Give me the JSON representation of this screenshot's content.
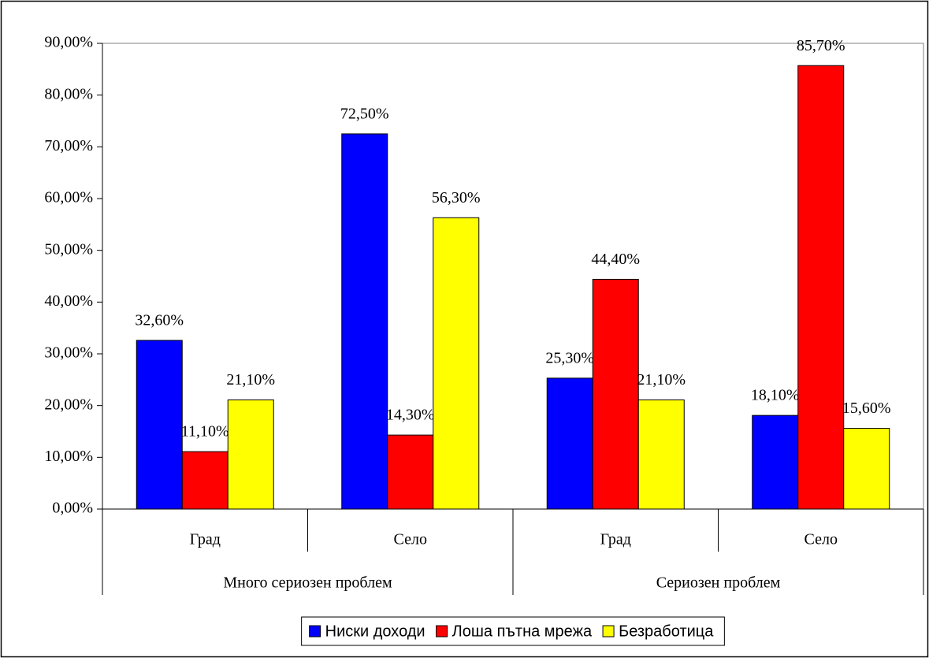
{
  "chart_data": {
    "type": "bar",
    "categories": [
      "Град",
      "Село",
      "Град",
      "Село"
    ],
    "group_labels": [
      "Много сериозен проблем",
      "Сериозен проблем"
    ],
    "series": [
      {
        "name": "Ниски доходи",
        "color": "#0000ff",
        "values": [
          32.6,
          72.5,
          25.3,
          18.1
        ],
        "value_labels": [
          "32,60%",
          "72,50%",
          "25,30%",
          "18,10%"
        ]
      },
      {
        "name": "Лоша пътна мрежа",
        "color": "#ff0000",
        "values": [
          11.1,
          14.3,
          44.4,
          85.7
        ],
        "value_labels": [
          "11,10%",
          "14,30%",
          "44,40%",
          "85,70%"
        ]
      },
      {
        "name": "Безработица",
        "color": "#ffff00",
        "values": [
          21.1,
          56.3,
          21.1,
          15.6
        ],
        "value_labels": [
          "21,10%",
          "56,30%",
          "21,10%",
          "15,60%"
        ]
      }
    ],
    "ylim": [
      0,
      90
    ],
    "yticks": [
      {
        "value": 0,
        "label": "0,00%"
      },
      {
        "value": 10,
        "label": "10,00%"
      },
      {
        "value": 20,
        "label": "20,00%"
      },
      {
        "value": 30,
        "label": "30,00%"
      },
      {
        "value": 40,
        "label": "40,00%"
      },
      {
        "value": 50,
        "label": "50,00%"
      },
      {
        "value": 60,
        "label": "60,00%"
      },
      {
        "value": 70,
        "label": "70,00%"
      },
      {
        "value": 80,
        "label": "80,00%"
      },
      {
        "value": 90,
        "label": "90,00%"
      }
    ],
    "grid": false,
    "legend": "bottom"
  }
}
